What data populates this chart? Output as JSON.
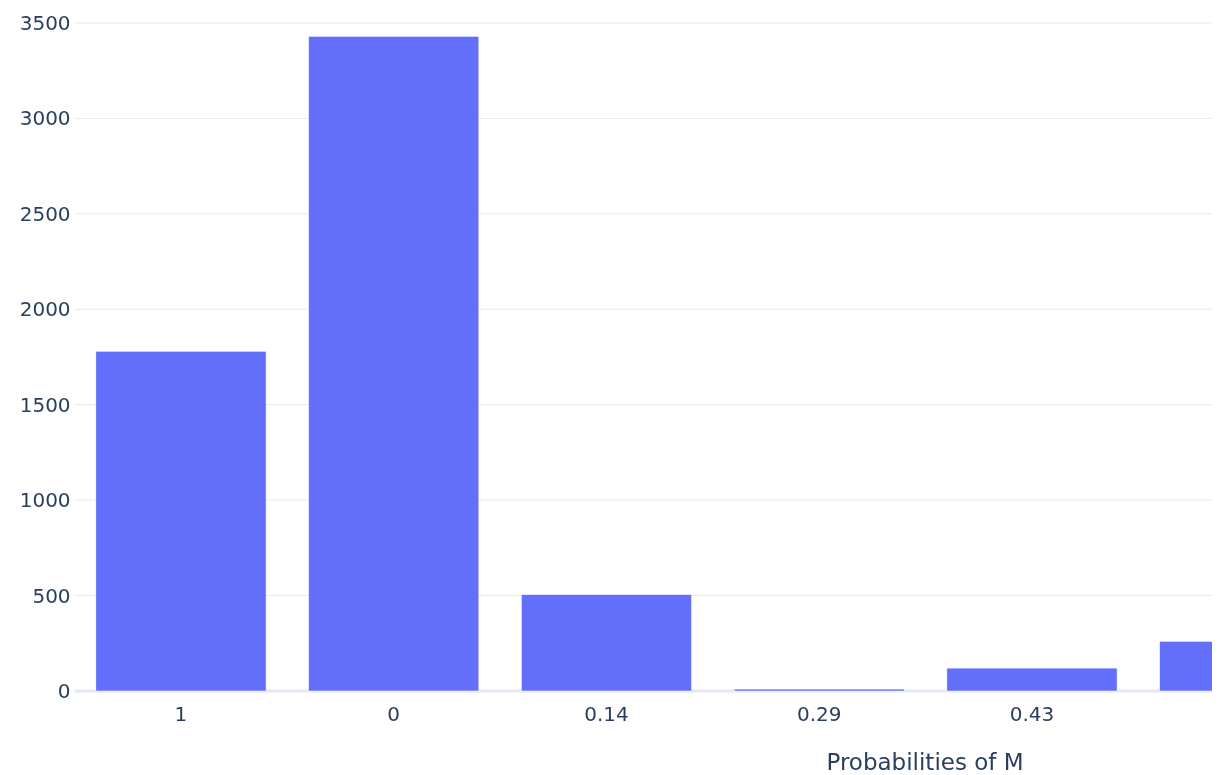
{
  "chart_data": {
    "type": "bar",
    "xlabel": "Probabilities of M",
    "categories": [
      "1",
      "0",
      "0.14",
      "0.29",
      "0.43",
      null
    ],
    "values": [
      1780,
      3430,
      505,
      10,
      120,
      260
    ],
    "color": "#636efa",
    "ylim": [
      0,
      3500
    ],
    "yticks": [
      0,
      500,
      1000,
      1500,
      2000,
      2500,
      3000,
      3500
    ],
    "grid": "y"
  }
}
